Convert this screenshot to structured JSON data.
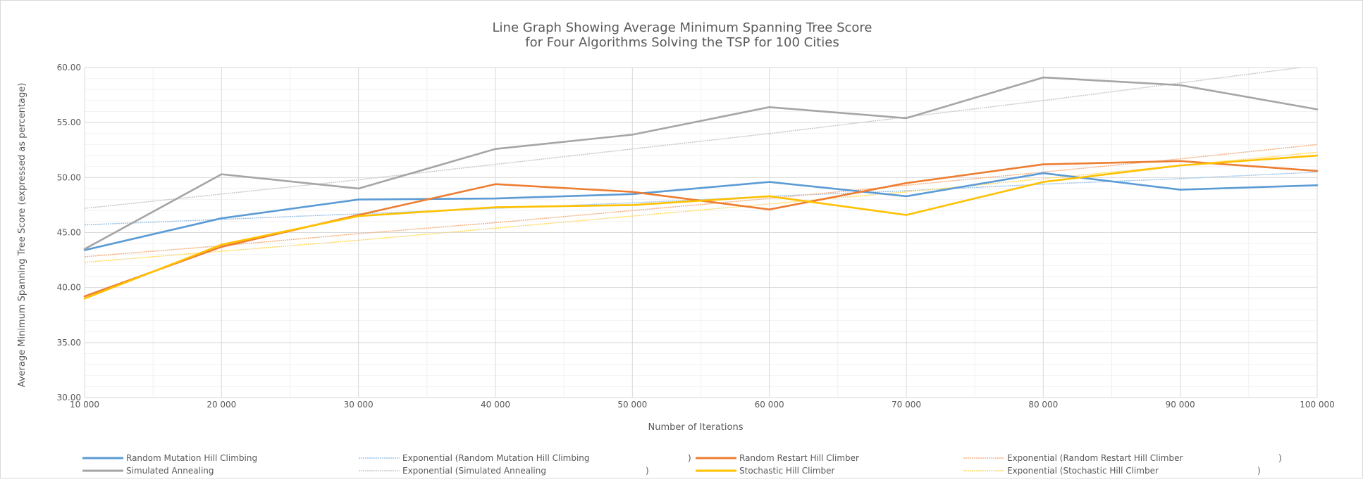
{
  "chart_data": {
    "type": "line",
    "title": [
      "Line Graph Showing Average Minimum Spanning Tree Score",
      "for Four Algorithms Solving the TSP for 100 Cities"
    ],
    "xlabel": "Number of Iterations",
    "ylabel": "Average Minimum Spanning Tree Score (expressed as percentage)",
    "x": [
      10000,
      20000,
      30000,
      40000,
      50000,
      60000,
      70000,
      80000,
      90000,
      100000
    ],
    "x_tick_labels": [
      "10 000",
      "20 000",
      "30 000",
      "40 000",
      "50 000",
      "60 000",
      "70 000",
      "80 000",
      "90 000",
      "100 000"
    ],
    "xlim": [
      10000,
      100000
    ],
    "ylim": [
      30,
      60
    ],
    "y_ticks": [
      30,
      35,
      40,
      45,
      50,
      55,
      60
    ],
    "y_tick_labels": [
      "30.00",
      "35.00",
      "40.00",
      "45.00",
      "50.00",
      "55.00",
      "60.00"
    ],
    "grid": true,
    "legend_position": "bottom",
    "series": [
      {
        "name": "Random Mutation Hill Climbing",
        "color": "#5b9bd5",
        "values": [
          43.4,
          46.3,
          48.0,
          48.1,
          48.5,
          49.6,
          48.3,
          50.4,
          48.9,
          49.3
        ]
      },
      {
        "name": "Random Restart Hill Climber",
        "color": "#ed7d31",
        "values": [
          39.2,
          43.7,
          46.6,
          49.4,
          48.7,
          47.1,
          49.5,
          51.2,
          51.5,
          50.6
        ]
      },
      {
        "name": "Simulated Annealing",
        "color": "#a5a5a5",
        "values": [
          43.5,
          50.3,
          49.0,
          52.6,
          53.9,
          56.4,
          55.4,
          59.1,
          58.4,
          56.2
        ]
      },
      {
        "name": "Stochastic Hill Climber",
        "color": "#ffc000",
        "values": [
          39.0,
          43.9,
          46.5,
          47.3,
          47.5,
          48.3,
          46.6,
          49.6,
          51.1,
          52.0
        ]
      }
    ],
    "trendlines": [
      {
        "name": "Exponential (Random Mutation Hill Climbing",
        "suffix": ")",
        "color": "#9dc3e6",
        "values": [
          45.7,
          46.2,
          46.7,
          47.2,
          47.7,
          48.3,
          48.8,
          49.4,
          49.9,
          50.5
        ]
      },
      {
        "name": "Exponential (Random Restart Hill Climber",
        "suffix": ")",
        "color": "#f4b183",
        "values": [
          42.8,
          43.8,
          44.9,
          45.9,
          47.0,
          48.1,
          49.3,
          50.5,
          51.7,
          53.0
        ]
      },
      {
        "name": "Exponential (Simulated Annealing",
        "suffix": ")",
        "color": "#c9c9c9",
        "values": [
          47.2,
          48.5,
          49.8,
          51.2,
          52.6,
          54.0,
          55.5,
          57.0,
          58.6,
          60.2
        ]
      },
      {
        "name": "Exponential (Stochastic Hill Climber",
        "suffix": ")",
        "color": "#ffd966",
        "values": [
          42.3,
          43.3,
          44.3,
          45.4,
          46.5,
          47.6,
          48.7,
          49.9,
          51.1,
          52.3
        ]
      }
    ],
    "legend": [
      {
        "label": "Random Mutation Hill Climbing",
        "color": "#5b9bd5",
        "kind": "series",
        "suffix": ""
      },
      {
        "label": "Exponential (Random Mutation Hill Climbing",
        "color": "#9dc3e6",
        "kind": "trend",
        "suffix": ")"
      },
      {
        "label": "Random Restart Hill Climber",
        "color": "#ed7d31",
        "kind": "series",
        "suffix": ""
      },
      {
        "label": "Exponential (Random Restart Hill Climber",
        "color": "#f4b183",
        "kind": "trend",
        "suffix": ")"
      },
      {
        "label": "Simulated Annealing",
        "color": "#a5a5a5",
        "kind": "series",
        "suffix": ""
      },
      {
        "label": "Exponential (Simulated Annealing",
        "color": "#c9c9c9",
        "kind": "trend",
        "suffix": ")"
      },
      {
        "label": "Stochastic Hill Climber",
        "color": "#ffc000",
        "kind": "series",
        "suffix": ""
      },
      {
        "label": "Exponential (Stochastic Hill Climber",
        "color": "#ffd966",
        "kind": "trend",
        "suffix": ")"
      }
    ]
  }
}
